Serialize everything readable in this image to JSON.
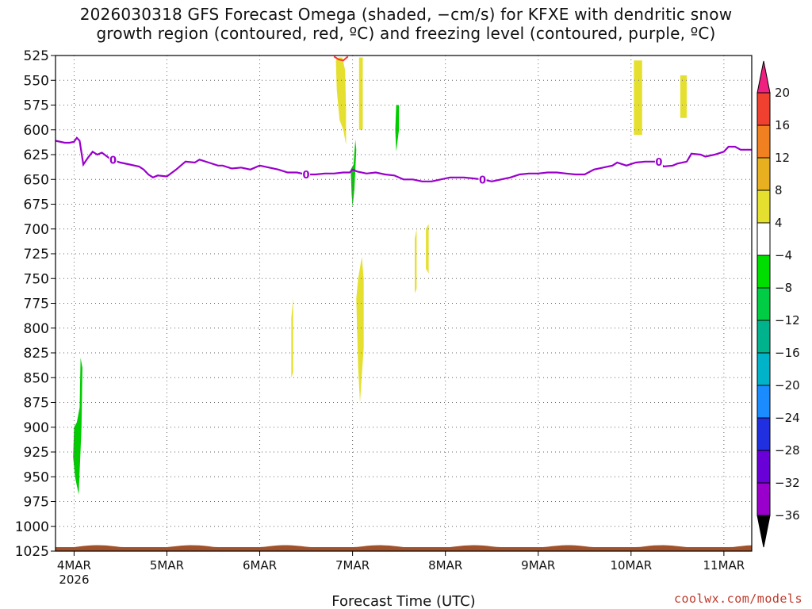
{
  "title": {
    "line1": "2026030318 GFS Forecast Omega (shaded, −cm/s) for KFXE with dendritic snow",
    "line2": "growth region (contoured, red, ºC) and freezing level (contoured, purple, ºC)"
  },
  "credit": "coolwx.com/models",
  "colors": {
    "freezing_line": "#9900cc",
    "dendritic_contour": "#ff3333",
    "terrain": "#a0522d",
    "grid": "#666666"
  },
  "chart_data": {
    "type": "heatmap",
    "xlabel": "Forecast Time (UTC)",
    "ylabel": "",
    "x_ticks": [
      "4MAR\n2026",
      "5MAR",
      "6MAR",
      "7MAR",
      "8MAR",
      "9MAR",
      "10MAR",
      "11MAR"
    ],
    "y_ticks": [
      525,
      550,
      575,
      600,
      625,
      650,
      675,
      700,
      725,
      750,
      775,
      800,
      825,
      850,
      875,
      900,
      925,
      950,
      975,
      1000,
      1025
    ],
    "y_range": [
      525,
      1025
    ],
    "x_range_days": [
      -0.2,
      7.3
    ],
    "colorbar": {
      "levels": [
        -36,
        -32,
        -28,
        -24,
        -20,
        -16,
        -12,
        -8,
        -4,
        4,
        8,
        12,
        16,
        20
      ],
      "colors": [
        "#a0a0a0",
        "#9900cc",
        "#6a00d8",
        "#2030e0",
        "#1a8cff",
        "#00b3c8",
        "#00b38c",
        "#00cc44",
        "#00dd00",
        "#ffffff",
        "#e5e030",
        "#e8b020",
        "#f08020",
        "#f04030",
        "#f02080"
      ]
    },
    "freezing_level_label": "0",
    "freezing_level": [
      {
        "x": -0.2,
        "p": 611
      },
      {
        "x": -0.1,
        "p": 613
      },
      {
        "x": -0.05,
        "p": 613
      },
      {
        "x": 0.0,
        "p": 612
      },
      {
        "x": 0.03,
        "p": 608
      },
      {
        "x": 0.06,
        "p": 611
      },
      {
        "x": 0.1,
        "p": 635
      },
      {
        "x": 0.15,
        "p": 628
      },
      {
        "x": 0.2,
        "p": 622
      },
      {
        "x": 0.25,
        "p": 625
      },
      {
        "x": 0.3,
        "p": 623
      },
      {
        "x": 0.4,
        "p": 630
      },
      {
        "x": 0.5,
        "p": 633
      },
      {
        "x": 0.6,
        "p": 635
      },
      {
        "x": 0.7,
        "p": 637
      },
      {
        "x": 0.75,
        "p": 640
      },
      {
        "x": 0.8,
        "p": 645
      },
      {
        "x": 0.85,
        "p": 648
      },
      {
        "x": 0.9,
        "p": 646
      },
      {
        "x": 1.0,
        "p": 647
      },
      {
        "x": 1.1,
        "p": 640
      },
      {
        "x": 1.2,
        "p": 632
      },
      {
        "x": 1.3,
        "p": 633
      },
      {
        "x": 1.35,
        "p": 630
      },
      {
        "x": 1.45,
        "p": 633
      },
      {
        "x": 1.55,
        "p": 636
      },
      {
        "x": 1.6,
        "p": 636
      },
      {
        "x": 1.7,
        "p": 639
      },
      {
        "x": 1.8,
        "p": 638
      },
      {
        "x": 1.9,
        "p": 640
      },
      {
        "x": 2.0,
        "p": 636
      },
      {
        "x": 2.1,
        "p": 638
      },
      {
        "x": 2.2,
        "p": 640
      },
      {
        "x": 2.3,
        "p": 643
      },
      {
        "x": 2.4,
        "p": 643
      },
      {
        "x": 2.5,
        "p": 645
      },
      {
        "x": 2.6,
        "p": 645
      },
      {
        "x": 2.7,
        "p": 644
      },
      {
        "x": 2.8,
        "p": 644
      },
      {
        "x": 2.9,
        "p": 643
      },
      {
        "x": 2.97,
        "p": 643
      },
      {
        "x": 3.0,
        "p": 640
      },
      {
        "x": 3.05,
        "p": 642
      },
      {
        "x": 3.15,
        "p": 644
      },
      {
        "x": 3.25,
        "p": 643
      },
      {
        "x": 3.35,
        "p": 645
      },
      {
        "x": 3.45,
        "p": 646
      },
      {
        "x": 3.55,
        "p": 650
      },
      {
        "x": 3.65,
        "p": 650
      },
      {
        "x": 3.75,
        "p": 652
      },
      {
        "x": 3.85,
        "p": 652
      },
      {
        "x": 3.95,
        "p": 650
      },
      {
        "x": 4.05,
        "p": 648
      },
      {
        "x": 4.2,
        "p": 648
      },
      {
        "x": 4.3,
        "p": 649
      },
      {
        "x": 4.4,
        "p": 650
      },
      {
        "x": 4.5,
        "p": 652
      },
      {
        "x": 4.6,
        "p": 650
      },
      {
        "x": 4.7,
        "p": 648
      },
      {
        "x": 4.8,
        "p": 645
      },
      {
        "x": 4.9,
        "p": 644
      },
      {
        "x": 5.0,
        "p": 644
      },
      {
        "x": 5.1,
        "p": 643
      },
      {
        "x": 5.2,
        "p": 643
      },
      {
        "x": 5.3,
        "p": 644
      },
      {
        "x": 5.4,
        "p": 645
      },
      {
        "x": 5.5,
        "p": 645
      },
      {
        "x": 5.6,
        "p": 640
      },
      {
        "x": 5.7,
        "p": 638
      },
      {
        "x": 5.8,
        "p": 636
      },
      {
        "x": 5.85,
        "p": 633
      },
      {
        "x": 5.95,
        "p": 636
      },
      {
        "x": 6.05,
        "p": 633
      },
      {
        "x": 6.15,
        "p": 632
      },
      {
        "x": 6.25,
        "p": 632
      },
      {
        "x": 6.3,
        "p": 632
      },
      {
        "x": 6.35,
        "p": 637
      },
      {
        "x": 6.45,
        "p": 636
      },
      {
        "x": 6.5,
        "p": 634
      },
      {
        "x": 6.6,
        "p": 632
      },
      {
        "x": 6.65,
        "p": 624
      },
      {
        "x": 6.75,
        "p": 625
      },
      {
        "x": 6.8,
        "p": 627
      },
      {
        "x": 6.9,
        "p": 625
      },
      {
        "x": 7.0,
        "p": 622
      },
      {
        "x": 7.05,
        "p": 617
      },
      {
        "x": 7.12,
        "p": 617
      },
      {
        "x": 7.18,
        "p": 620
      },
      {
        "x": 7.3,
        "p": 620
      }
    ],
    "freezing_level_label_positions": [
      0.42,
      2.5,
      4.4,
      6.3
    ],
    "shaded_regions": [
      {
        "color": "#00cc00",
        "poly": [
          [
            0.0,
            900
          ],
          [
            -0.01,
            930
          ],
          [
            0.01,
            950
          ],
          [
            0.05,
            968
          ],
          [
            0.06,
            945
          ],
          [
            0.08,
            900
          ],
          [
            0.09,
            840
          ],
          [
            0.07,
            830
          ],
          [
            0.06,
            880
          ],
          [
            0.03,
            895
          ]
        ]
      },
      {
        "color": "#00cc00",
        "poly": [
          [
            2.98,
            640
          ],
          [
            2.99,
            665
          ],
          [
            3.0,
            678
          ],
          [
            3.02,
            660
          ],
          [
            3.04,
            620
          ],
          [
            3.03,
            610
          ],
          [
            3.01,
            635
          ]
        ]
      },
      {
        "color": "#00cc00",
        "poly": [
          [
            3.47,
            575
          ],
          [
            3.46,
            600
          ],
          [
            3.47,
            622
          ],
          [
            3.5,
            600
          ],
          [
            3.5,
            575
          ]
        ]
      },
      {
        "color": "#e5e030",
        "poly": [
          [
            2.82,
            530
          ],
          [
            2.83,
            560
          ],
          [
            2.86,
            590
          ],
          [
            2.9,
            600
          ],
          [
            2.93,
            615
          ],
          [
            2.93,
            580
          ],
          [
            2.92,
            540
          ],
          [
            2.89,
            527
          ],
          [
            2.85,
            527
          ]
        ]
      },
      {
        "color": "#e5e030",
        "poly": [
          [
            3.07,
            527
          ],
          [
            3.07,
            600
          ],
          [
            3.11,
            600
          ],
          [
            3.11,
            527
          ]
        ]
      },
      {
        "color": "#e5e030",
        "poly": [
          [
            3.04,
            770
          ],
          [
            3.06,
            840
          ],
          [
            3.08,
            875
          ],
          [
            3.12,
            820
          ],
          [
            3.12,
            750
          ],
          [
            3.1,
            728
          ],
          [
            3.06,
            750
          ]
        ]
      },
      {
        "color": "#e5e030",
        "poly": [
          [
            2.34,
            790
          ],
          [
            2.34,
            850
          ],
          [
            2.36,
            845
          ],
          [
            2.36,
            770
          ]
        ]
      },
      {
        "color": "#e5e030",
        "poly": [
          [
            3.67,
            710
          ],
          [
            3.67,
            765
          ],
          [
            3.69,
            760
          ],
          [
            3.69,
            700
          ]
        ]
      },
      {
        "color": "#e5e030",
        "poly": [
          [
            3.79,
            700
          ],
          [
            3.79,
            740
          ],
          [
            3.82,
            745
          ],
          [
            3.82,
            695
          ]
        ]
      },
      {
        "color": "#e5e030",
        "poly": [
          [
            6.03,
            530
          ],
          [
            6.03,
            605
          ],
          [
            6.12,
            605
          ],
          [
            6.12,
            530
          ]
        ]
      },
      {
        "color": "#e5e030",
        "poly": [
          [
            6.53,
            545
          ],
          [
            6.53,
            588
          ],
          [
            6.6,
            588
          ],
          [
            6.6,
            545
          ]
        ]
      }
    ],
    "dendritic_region": [
      [
        2.8,
        526
      ],
      [
        2.85,
        529
      ],
      [
        2.9,
        530
      ],
      [
        2.95,
        526
      ]
    ]
  }
}
